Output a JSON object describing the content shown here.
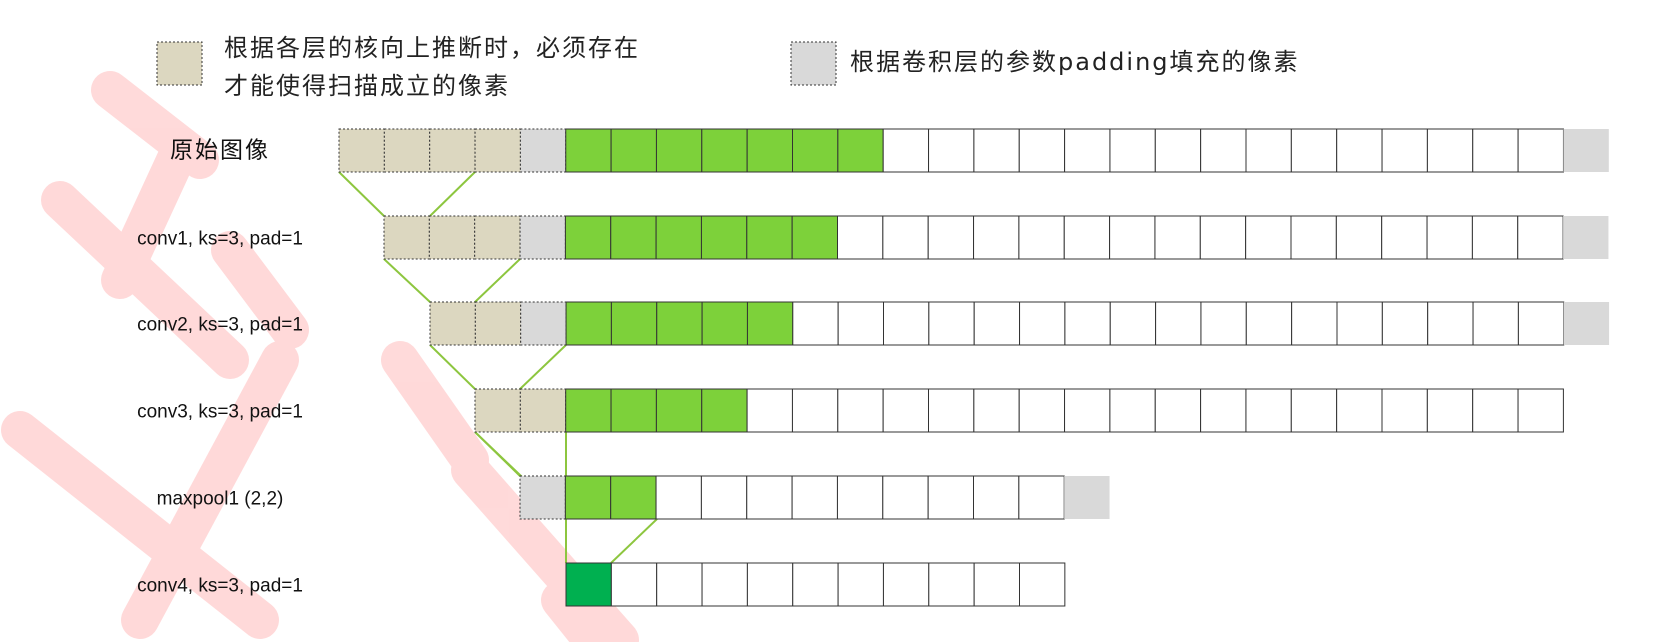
{
  "legend": {
    "beige": {
      "line1": "根据各层的核向上推断时，必须存在",
      "line2": "才能使得扫描成立的像素"
    },
    "gray": {
      "text": "根据卷积层的参数padding填充的像素"
    }
  },
  "colors": {
    "beige": "#dcd7c0",
    "gray": "#d9d9d9",
    "green": "#7dd13a",
    "dark_green": "#00b050",
    "white": "#ffffff",
    "border": "#333333",
    "connector": "#8dc63f",
    "watermark": "#ff3333"
  },
  "rows": [
    {
      "label": "原始图像",
      "cjk": true,
      "cells": [
        "beige",
        "beige",
        "beige",
        "beige",
        "gray",
        "green",
        "green",
        "green",
        "green",
        "green",
        "green",
        "green",
        "white",
        "white",
        "white",
        "white",
        "white",
        "white",
        "white",
        "white",
        "white",
        "white",
        "white",
        "white",
        "white",
        "white",
        "white",
        "pad-gray"
      ]
    },
    {
      "label": "conv1, ks=3, pad=1",
      "cjk": false,
      "cells": [
        "beige",
        "beige",
        "beige",
        "gray",
        "green",
        "green",
        "green",
        "green",
        "green",
        "green",
        "white",
        "white",
        "white",
        "white",
        "white",
        "white",
        "white",
        "white",
        "white",
        "white",
        "white",
        "white",
        "white",
        "white",
        "white",
        "white",
        "pad-gray"
      ]
    },
    {
      "label": "conv2, ks=3, pad=1",
      "cjk": false,
      "cells": [
        "beige",
        "beige",
        "gray",
        "green",
        "green",
        "green",
        "green",
        "green",
        "white",
        "white",
        "white",
        "white",
        "white",
        "white",
        "white",
        "white",
        "white",
        "white",
        "white",
        "white",
        "white",
        "white",
        "white",
        "white",
        "white",
        "pad-gray"
      ]
    },
    {
      "label": "conv3, ks=3, pad=1",
      "cjk": false,
      "cells": [
        "beige",
        "beige",
        "green",
        "green",
        "green",
        "green",
        "white",
        "white",
        "white",
        "white",
        "white",
        "white",
        "white",
        "white",
        "white",
        "white",
        "white",
        "white",
        "white",
        "white",
        "white",
        "white",
        "white",
        "white"
      ]
    },
    {
      "label": "maxpool1 (2,2)",
      "cjk": false,
      "cells": [
        "gray",
        "green",
        "green",
        "white",
        "white",
        "white",
        "white",
        "white",
        "white",
        "white",
        "white",
        "white",
        "pad-gray"
      ]
    },
    {
      "label": "conv4, ks=3, pad=1",
      "cjk": false,
      "cells": [
        "dark-green",
        "white",
        "white",
        "white",
        "white",
        "white",
        "white",
        "white",
        "white",
        "white",
        "white"
      ]
    }
  ]
}
